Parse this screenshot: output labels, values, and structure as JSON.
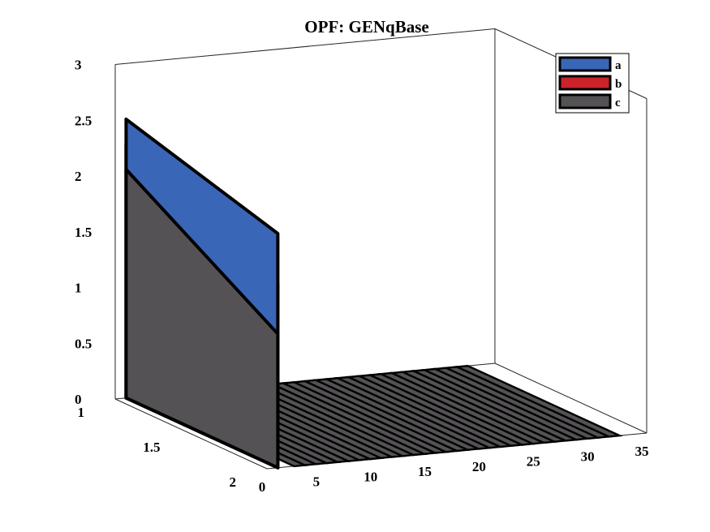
{
  "chart_data": {
    "type": "area",
    "view": "3d",
    "title": "OPF: GENqBase",
    "xlabel": "",
    "ylabel": "",
    "zlabel": "",
    "x_ticks": [
      "0",
      "5",
      "10",
      "15",
      "20",
      "25",
      "30",
      "35"
    ],
    "y_ticks": [
      "1",
      "1.5",
      "2"
    ],
    "z_ticks": [
      "0",
      "0.5",
      "1",
      "1.5",
      "2",
      "2.5",
      "3"
    ],
    "xlim": [
      0,
      35
    ],
    "ylim": [
      1,
      2
    ],
    "zlim": [
      0,
      3
    ],
    "x": [
      1,
      2,
      3,
      4,
      5,
      6,
      7,
      8,
      9,
      10,
      11,
      12,
      13,
      14,
      15,
      16,
      17,
      18,
      19,
      20,
      21,
      22,
      23,
      24,
      25,
      26,
      27,
      28,
      29,
      30,
      31,
      32
    ],
    "legend_position": "top-right",
    "colors": {
      "a": "#3a66b8",
      "b": "#cc2229",
      "c": "#545254"
    },
    "series": [
      {
        "name": "a",
        "values": [
          0.22,
          0.45,
          0,
          0,
          0,
          0,
          0,
          0,
          0,
          0,
          0,
          0,
          0,
          0,
          0,
          0,
          0,
          0,
          0,
          0,
          0,
          0,
          0,
          0,
          0,
          0,
          0,
          0,
          0,
          0,
          0,
          0
        ]
      },
      {
        "name": "b",
        "values": [
          0.23,
          0.45,
          0,
          0,
          0,
          0,
          0,
          0,
          0,
          0,
          0,
          0,
          0,
          0,
          0,
          0,
          0,
          0,
          0,
          0,
          0,
          0,
          0,
          0,
          0,
          0,
          0,
          0,
          0,
          0,
          0,
          0
        ]
      },
      {
        "name": "c",
        "values": [
          2.05,
          1.2,
          0,
          0,
          0,
          0,
          0,
          0,
          0,
          0,
          0,
          0,
          0,
          0,
          0,
          0,
          0,
          0,
          0,
          0,
          0,
          0,
          0,
          0,
          0,
          0,
          0,
          0,
          0,
          0,
          0,
          0
        ]
      }
    ]
  }
}
